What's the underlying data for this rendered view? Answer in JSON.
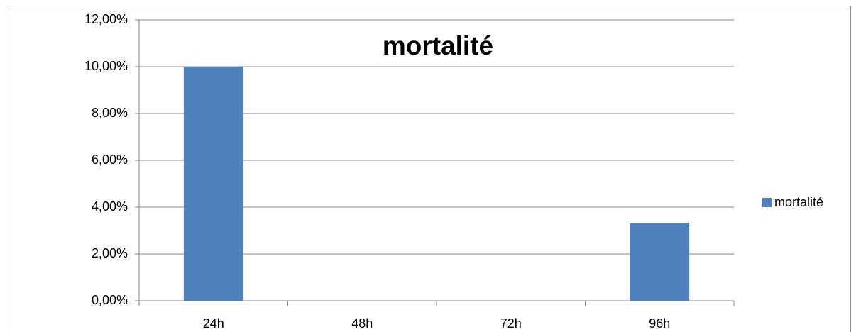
{
  "chart_data": {
    "type": "bar",
    "title": "mortalité",
    "categories": [
      "24h",
      "48h",
      "72h",
      "96h"
    ],
    "series": [
      {
        "name": "mortalité",
        "color": "#4f81bd",
        "values": [
          10,
          0,
          0,
          3.33
        ]
      }
    ],
    "ylim": [
      0,
      12
    ],
    "yticks": [
      {
        "value": 0,
        "label": "0,00%"
      },
      {
        "value": 2,
        "label": "2,00%"
      },
      {
        "value": 4,
        "label": "4,00%"
      },
      {
        "value": 6,
        "label": "6,00%"
      },
      {
        "value": 8,
        "label": "8,00%"
      },
      {
        "value": 10,
        "label": "10,00%"
      },
      {
        "value": 12,
        "label": "12,00%"
      }
    ],
    "grid": true,
    "legend": "right"
  }
}
